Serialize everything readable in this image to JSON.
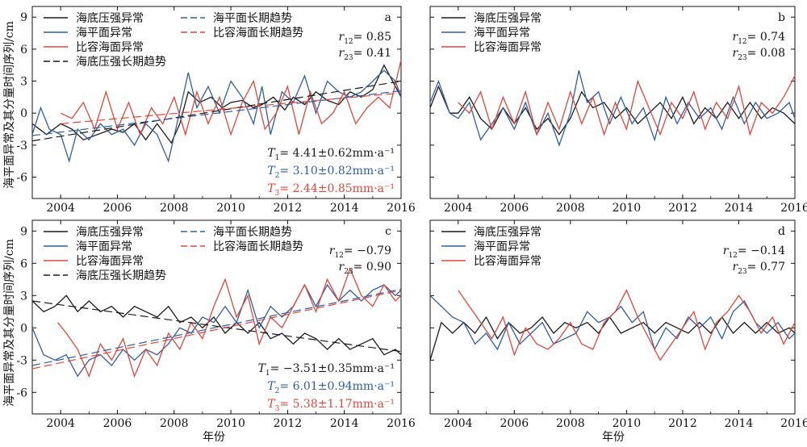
{
  "figure": {
    "ylabel": "海平面异常及其分量时间序列/cm",
    "xlabel": "年份"
  },
  "legend_labels": {
    "obp": "海底压强异常",
    "sla": "海平面异常",
    "steric": "比容海面异常",
    "obp_trend": "海底压强长期趋势",
    "sla_trend": "海平面长期趋势",
    "steric_trend": "比容海面长期趋势"
  },
  "colors": {
    "obp": "#1a1a1a",
    "sla": "#2e5e9e",
    "steric": "#e0463a"
  },
  "chart_data": [
    {
      "type": "line",
      "panel": "a",
      "xlim": [
        2003,
        2016
      ],
      "ylim": [
        -8,
        10
      ],
      "xticks": [
        "2004",
        "2006",
        "2008",
        "2010",
        "2012",
        "2014",
        "2016"
      ],
      "yticks": [
        "-6",
        "-3",
        "0",
        "3",
        "6",
        "9"
      ],
      "show_trends": true,
      "stats": [
        "r12= 0.85",
        "r23= 0.41"
      ],
      "trend_text": [
        "T1= 4.41±0.62mm·a⁻¹",
        "T2= 3.10±0.82mm·a⁻¹",
        "T3= 2.44±0.85mm·a⁻¹"
      ],
      "series": [
        {
          "key": "obp",
          "x": [
            2003.0,
            2003.5,
            2004.0,
            2004.4,
            2004.8,
            2005.3,
            2005.8,
            2006.2,
            2006.6,
            2007.0,
            2007.4,
            2007.9,
            2008.2,
            2008.5,
            2008.9,
            2009.3,
            2009.7,
            2010.0,
            2010.4,
            2010.8,
            2011.1,
            2011.5,
            2011.9,
            2012.2,
            2012.6,
            2013.0,
            2013.4,
            2013.8,
            2014.2,
            2014.6,
            2015.0,
            2015.4,
            2015.7,
            2016.0
          ],
          "values": [
            -1.0,
            -2.0,
            -1.0,
            -1.5,
            -2.5,
            -2.0,
            -1.5,
            -1.8,
            -1.0,
            -2.5,
            -1.0,
            -2.8,
            -1.0,
            2.0,
            1.0,
            1.5,
            0.5,
            1.0,
            1.2,
            0.5,
            0.8,
            1.5,
            0.3,
            1.5,
            0.8,
            2.0,
            1.2,
            0.8,
            2.0,
            1.5,
            2.2,
            4.5,
            3.0,
            1.5
          ]
        },
        {
          "key": "sla",
          "x": [
            2003.0,
            2003.3,
            2003.6,
            2004.0,
            2004.3,
            2004.6,
            2005.0,
            2005.4,
            2005.8,
            2006.2,
            2006.6,
            2007.0,
            2007.4,
            2007.8,
            2008.1,
            2008.5,
            2008.8,
            2009.2,
            2009.6,
            2010.0,
            2010.4,
            2010.8,
            2011.1,
            2011.4,
            2011.8,
            2012.2,
            2012.6,
            2013.0,
            2013.4,
            2013.8,
            2014.2,
            2014.6,
            2015.0,
            2015.4,
            2015.8,
            2016.0
          ],
          "values": [
            -2.0,
            0.5,
            -1.5,
            -2.0,
            -4.5,
            -1.5,
            -2.5,
            -1.0,
            -2.0,
            -1.5,
            -3.0,
            -1.0,
            -2.0,
            -4.5,
            -1.0,
            3.8,
            0.5,
            2.5,
            0.0,
            3.0,
            1.5,
            -1.0,
            2.5,
            -2.0,
            2.0,
            1.0,
            3.5,
            0.0,
            3.0,
            2.0,
            1.5,
            2.0,
            3.0,
            4.0,
            3.0,
            1.5
          ]
        },
        {
          "key": "steric",
          "x": [
            2004.0,
            2004.4,
            2004.8,
            2005.2,
            2005.6,
            2006.0,
            2006.4,
            2006.8,
            2007.2,
            2007.6,
            2008.0,
            2008.4,
            2008.8,
            2009.2,
            2009.6,
            2010.0,
            2010.4,
            2010.8,
            2011.2,
            2011.6,
            2012.0,
            2012.4,
            2012.8,
            2013.2,
            2013.6,
            2014.0,
            2014.4,
            2014.8,
            2015.2,
            2015.6,
            2016.0
          ],
          "values": [
            0.0,
            -0.5,
            1.0,
            -1.5,
            2.0,
            -1.5,
            1.0,
            -2.0,
            0.5,
            -1.0,
            1.5,
            -2.0,
            2.0,
            -1.0,
            1.5,
            -2.0,
            1.0,
            3.0,
            -1.5,
            0.0,
            2.5,
            -2.0,
            2.0,
            -1.0,
            0.0,
            2.0,
            -1.0,
            0.5,
            1.5,
            0.5,
            5.0
          ]
        },
        {
          "key": "obp_trend",
          "x": [
            2003,
            2016
          ],
          "values": [
            -2.6,
            3.0
          ]
        },
        {
          "key": "sla_trend",
          "x": [
            2003,
            2016
          ],
          "values": [
            -2.1,
            2.1
          ]
        },
        {
          "key": "steric_trend",
          "x": [
            2004,
            2016
          ],
          "values": [
            -1.0,
            1.9
          ]
        }
      ]
    },
    {
      "type": "line",
      "panel": "b",
      "xlim": [
        2003,
        2016
      ],
      "ylim": [
        -8,
        10
      ],
      "xticks": [
        "2004",
        "2006",
        "2008",
        "2010",
        "2012",
        "2014",
        "2016"
      ],
      "yticks": [],
      "show_trends": false,
      "stats": [
        "r12= 0.74",
        "r23= 0.08"
      ],
      "trend_text": [],
      "series": [
        {
          "key": "obp",
          "x": [
            2003.0,
            2003.3,
            2003.7,
            2004.0,
            2004.4,
            2004.8,
            2005.2,
            2005.6,
            2006.0,
            2006.4,
            2006.8,
            2007.2,
            2007.6,
            2008.0,
            2008.4,
            2008.8,
            2009.2,
            2009.6,
            2010.0,
            2010.4,
            2010.8,
            2011.2,
            2011.6,
            2012.0,
            2012.4,
            2012.8,
            2013.2,
            2013.6,
            2014.0,
            2014.4,
            2014.8,
            2015.2,
            2015.6,
            2016.0
          ],
          "values": [
            0.5,
            2.5,
            0.0,
            0.0,
            1.5,
            -0.5,
            -1.5,
            0.5,
            -1.0,
            0.5,
            -1.5,
            -0.5,
            -2.0,
            -0.5,
            2.0,
            0.5,
            1.0,
            -0.5,
            0.5,
            -1.0,
            0.0,
            1.0,
            -0.5,
            1.5,
            -1.0,
            0.5,
            -0.5,
            1.0,
            -0.5,
            1.0,
            -0.5,
            0.5,
            0.0,
            -1.0
          ]
        },
        {
          "key": "sla",
          "x": [
            2003.0,
            2003.3,
            2003.7,
            2004.0,
            2004.4,
            2004.8,
            2005.2,
            2005.6,
            2006.0,
            2006.4,
            2006.8,
            2007.2,
            2007.6,
            2008.0,
            2008.3,
            2008.6,
            2009.0,
            2009.4,
            2009.8,
            2010.2,
            2010.6,
            2011.0,
            2011.4,
            2011.8,
            2012.2,
            2012.6,
            2013.0,
            2013.4,
            2013.8,
            2014.2,
            2014.6,
            2015.0,
            2015.4,
            2015.8,
            2016.0
          ],
          "values": [
            1.0,
            3.0,
            0.0,
            -0.5,
            1.0,
            -2.5,
            -1.0,
            0.5,
            -1.5,
            1.0,
            -2.0,
            0.0,
            -3.0,
            0.0,
            4.0,
            1.0,
            2.0,
            -1.0,
            1.5,
            -1.0,
            0.5,
            -2.5,
            1.5,
            -1.0,
            1.0,
            -0.5,
            0.5,
            -1.5,
            1.5,
            -1.0,
            1.0,
            -0.5,
            0.0,
            1.0,
            -0.5
          ]
        },
        {
          "key": "steric",
          "x": [
            2004.0,
            2004.4,
            2004.8,
            2005.2,
            2005.6,
            2006.0,
            2006.4,
            2006.8,
            2007.2,
            2007.6,
            2008.0,
            2008.4,
            2008.8,
            2009.2,
            2009.6,
            2010.0,
            2010.4,
            2010.8,
            2011.2,
            2011.6,
            2012.0,
            2012.4,
            2012.8,
            2013.2,
            2013.6,
            2014.0,
            2014.4,
            2014.8,
            2015.2,
            2015.6,
            2016.0
          ],
          "values": [
            1.0,
            0.0,
            2.0,
            -1.5,
            1.5,
            -1.0,
            2.0,
            -2.0,
            1.0,
            -1.5,
            2.0,
            -1.0,
            1.5,
            -2.0,
            1.0,
            -1.5,
            3.0,
            0.5,
            -2.0,
            1.0,
            -0.5,
            2.0,
            -1.5,
            1.0,
            -0.5,
            2.5,
            -2.0,
            1.0,
            0.0,
            1.5,
            3.5
          ]
        }
      ]
    },
    {
      "type": "line",
      "panel": "c",
      "xlim": [
        2003,
        2016
      ],
      "ylim": [
        -8,
        10
      ],
      "xticks": [
        "2004",
        "2006",
        "2008",
        "2010",
        "2012",
        "2014",
        "2016"
      ],
      "yticks": [
        "-6",
        "-3",
        "0",
        "3",
        "6",
        "9"
      ],
      "show_trends": true,
      "stats": [
        "r12= −0.79",
        "r23= 0.90"
      ],
      "trend_text": [
        "T1= −3.51±0.35mm·a⁻¹",
        "T2= 6.01±0.94mm·a⁻¹",
        "T3= 5.38±1.17mm·a⁻¹"
      ],
      "series": [
        {
          "key": "obp",
          "x": [
            2003.0,
            2003.4,
            2003.8,
            2004.2,
            2004.6,
            2005.0,
            2005.4,
            2005.8,
            2006.2,
            2006.6,
            2007.0,
            2007.4,
            2007.8,
            2008.2,
            2008.6,
            2009.0,
            2009.4,
            2009.8,
            2010.2,
            2010.6,
            2011.0,
            2011.4,
            2011.8,
            2012.2,
            2012.6,
            2013.0,
            2013.4,
            2013.8,
            2014.2,
            2014.6,
            2015.0,
            2015.4,
            2015.8,
            2016.0
          ],
          "values": [
            2.5,
            1.5,
            2.0,
            3.0,
            1.5,
            2.5,
            1.5,
            2.0,
            1.0,
            2.0,
            1.5,
            1.0,
            2.0,
            0.5,
            1.0,
            0.0,
            1.0,
            -0.5,
            0.5,
            -0.5,
            0.5,
            -1.0,
            -0.5,
            -1.5,
            -0.5,
            -1.0,
            -2.0,
            -1.0,
            -2.0,
            -1.5,
            -1.0,
            -2.5,
            -2.0,
            -2.5
          ]
        },
        {
          "key": "sla",
          "x": [
            2003.0,
            2003.4,
            2003.8,
            2004.2,
            2004.6,
            2005.0,
            2005.4,
            2005.8,
            2006.2,
            2006.6,
            2007.0,
            2007.4,
            2007.8,
            2008.2,
            2008.6,
            2009.0,
            2009.4,
            2009.8,
            2010.2,
            2010.6,
            2011.0,
            2011.4,
            2011.8,
            2012.2,
            2012.6,
            2013.0,
            2013.4,
            2013.8,
            2014.2,
            2014.6,
            2015.0,
            2015.4,
            2015.8,
            2016.0
          ],
          "values": [
            0.0,
            -2.5,
            -3.0,
            -2.5,
            -4.5,
            -3.0,
            -2.5,
            -3.5,
            -2.0,
            -3.0,
            -2.0,
            -2.5,
            -1.5,
            0.0,
            -0.5,
            1.0,
            0.5,
            2.0,
            0.5,
            3.5,
            0.0,
            2.0,
            1.0,
            2.0,
            4.0,
            2.0,
            4.0,
            2.5,
            3.5,
            2.5,
            3.5,
            4.0,
            3.0,
            3.5
          ]
        },
        {
          "key": "steric",
          "x": [
            2003.9,
            2004.2,
            2004.6,
            2005.0,
            2005.4,
            2005.8,
            2006.2,
            2006.6,
            2007.0,
            2007.4,
            2007.8,
            2008.2,
            2008.6,
            2009.0,
            2009.4,
            2009.8,
            2010.2,
            2010.6,
            2011.0,
            2011.4,
            2011.8,
            2012.2,
            2012.6,
            2013.0,
            2013.4,
            2013.8,
            2014.2,
            2014.6,
            2015.0,
            2015.4,
            2015.8,
            2016.0
          ],
          "values": [
            0.5,
            -0.5,
            -2.0,
            -4.5,
            -1.5,
            -3.0,
            -1.0,
            -4.5,
            -2.0,
            -3.5,
            -0.5,
            -2.0,
            0.5,
            -1.0,
            2.0,
            4.5,
            1.0,
            3.0,
            -1.5,
            1.0,
            0.0,
            2.0,
            4.0,
            1.5,
            4.5,
            2.5,
            5.5,
            3.0,
            2.0,
            4.0,
            2.5,
            3.0
          ]
        },
        {
          "key": "obp_trend",
          "x": [
            2003,
            2016
          ],
          "values": [
            2.5,
            -2.2
          ]
        },
        {
          "key": "sla_trend",
          "x": [
            2003,
            2016
          ],
          "values": [
            -3.5,
            3.6
          ]
        },
        {
          "key": "steric_trend",
          "x": [
            2003,
            2016
          ],
          "values": [
            -3.8,
            3.5
          ]
        }
      ]
    },
    {
      "type": "line",
      "panel": "d",
      "xlim": [
        2003,
        2016
      ],
      "ylim": [
        -8,
        10
      ],
      "xticks": [
        "2004",
        "2006",
        "2008",
        "2010",
        "2012",
        "2014",
        "2016"
      ],
      "yticks": [],
      "show_trends": false,
      "stats": [
        "r12= −0.14",
        "r23= 0.77"
      ],
      "trend_text": [],
      "series": [
        {
          "key": "obp",
          "x": [
            2003.0,
            2003.4,
            2003.8,
            2004.2,
            2004.6,
            2005.0,
            2005.4,
            2005.8,
            2006.2,
            2006.6,
            2007.0,
            2007.4,
            2007.8,
            2008.2,
            2008.6,
            2009.0,
            2009.4,
            2009.8,
            2010.2,
            2010.6,
            2011.0,
            2011.4,
            2011.8,
            2012.2,
            2012.6,
            2013.0,
            2013.4,
            2013.8,
            2014.2,
            2014.6,
            2015.0,
            2015.4,
            2015.8,
            2016.0
          ],
          "values": [
            -3.0,
            0.5,
            -0.5,
            0.5,
            -0.5,
            1.0,
            -1.0,
            0.5,
            -0.5,
            0.0,
            1.0,
            -0.5,
            0.5,
            0.0,
            0.5,
            -0.5,
            1.0,
            -0.5,
            0.0,
            0.5,
            -0.5,
            0.5,
            0.0,
            -0.5,
            0.5,
            -0.5,
            1.0,
            -0.5,
            0.5,
            -0.5,
            0.5,
            -0.5,
            0.0,
            -0.5
          ]
        },
        {
          "key": "sla",
          "x": [
            2003.0,
            2003.4,
            2003.8,
            2004.2,
            2004.6,
            2005.0,
            2005.4,
            2005.8,
            2006.2,
            2006.6,
            2007.0,
            2007.4,
            2007.8,
            2008.2,
            2008.6,
            2009.0,
            2009.4,
            2009.8,
            2010.2,
            2010.6,
            2011.0,
            2011.4,
            2011.8,
            2012.2,
            2012.6,
            2013.0,
            2013.4,
            2013.8,
            2014.2,
            2014.6,
            2015.0,
            2015.4,
            2015.8,
            2016.0
          ],
          "values": [
            3.0,
            2.0,
            1.0,
            0.5,
            -1.5,
            -0.5,
            -2.0,
            0.5,
            -1.5,
            -0.5,
            0.5,
            -1.5,
            -1.0,
            -0.5,
            1.5,
            0.5,
            1.0,
            2.0,
            0.5,
            1.5,
            -2.0,
            0.0,
            -1.0,
            1.0,
            0.0,
            1.0,
            -1.0,
            1.5,
            2.5,
            0.5,
            -0.5,
            0.5,
            -1.0,
            -0.5
          ]
        },
        {
          "key": "steric",
          "x": [
            2004.0,
            2004.4,
            2004.8,
            2005.2,
            2005.6,
            2006.0,
            2006.4,
            2006.8,
            2007.2,
            2007.6,
            2008.0,
            2008.4,
            2008.8,
            2009.2,
            2009.6,
            2010.0,
            2010.4,
            2010.8,
            2011.2,
            2011.6,
            2012.0,
            2012.4,
            2012.8,
            2013.2,
            2013.6,
            2014.0,
            2014.4,
            2014.8,
            2015.2,
            2015.6,
            2016.0
          ],
          "values": [
            3.5,
            2.0,
            0.5,
            -1.0,
            1.0,
            -2.5,
            0.0,
            -1.5,
            -2.0,
            -1.0,
            0.5,
            -1.5,
            -2.0,
            0.5,
            1.5,
            3.5,
            1.0,
            -1.0,
            -3.0,
            -1.5,
            0.0,
            1.5,
            -2.0,
            0.5,
            1.5,
            3.0,
            1.5,
            -0.5,
            1.0,
            -1.5,
            0.5
          ]
        }
      ]
    }
  ]
}
